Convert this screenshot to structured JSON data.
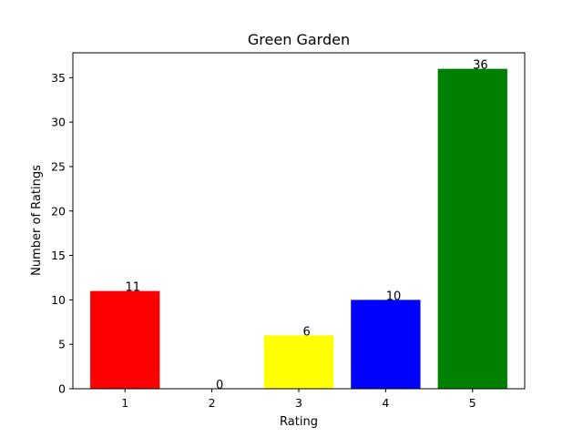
{
  "chart_data": {
    "type": "bar",
    "title": "Green Garden",
    "xlabel": "Rating",
    "ylabel": "Number of Ratings",
    "categories": [
      "1",
      "2",
      "3",
      "4",
      "5"
    ],
    "values": [
      11,
      0,
      6,
      10,
      36
    ],
    "colors": [
      "#ff0000",
      "#008000",
      "#ffff00",
      "#0000ff",
      "#008000"
    ],
    "ylim": [
      0,
      37.8
    ],
    "yticks": [
      0,
      5,
      10,
      15,
      20,
      25,
      30,
      35
    ],
    "grid": false,
    "legend": "none"
  }
}
